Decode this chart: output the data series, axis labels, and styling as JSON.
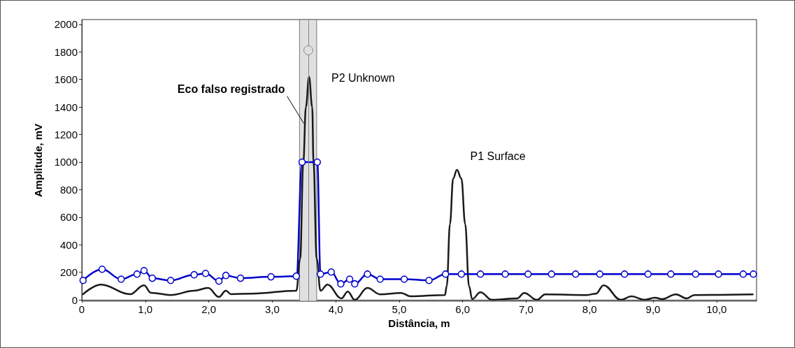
{
  "chart_data": {
    "type": "line",
    "xlabel": "Distância, m",
    "ylabel": "Amplitude, mV",
    "xlim": [
      0,
      10.63
    ],
    "ylim": [
      -10,
      2035
    ],
    "xticks": [
      {
        "value": 0,
        "label": "0"
      },
      {
        "value": 1,
        "label": "1,0"
      },
      {
        "value": 2,
        "label": "2,0"
      },
      {
        "value": 3,
        "label": "3,0"
      },
      {
        "value": 4,
        "label": "4,0"
      },
      {
        "value": 5,
        "label": "5,0"
      },
      {
        "value": 6,
        "label": "6,0"
      },
      {
        "value": 7,
        "label": "7,0"
      },
      {
        "value": 8,
        "label": "8,0"
      },
      {
        "value": 9,
        "label": "9,0"
      },
      {
        "value": 10,
        "label": "10,0"
      }
    ],
    "yticks": [
      0,
      200,
      400,
      600,
      800,
      1000,
      1200,
      1400,
      1600,
      1800,
      2000
    ],
    "grid": false,
    "line_style": "solid",
    "series": [
      {
        "color": "#1a1a1a",
        "marker": "none",
        "x": [
          0.02,
          0.3,
          0.76,
          0.98,
          1.09,
          1.4,
          1.77,
          1.99,
          2.16,
          2.27,
          2.35,
          2.68,
          3.38,
          3.44,
          3.49,
          3.53,
          3.58,
          3.63,
          3.65,
          3.7,
          3.76,
          3.87,
          4.09,
          4.19,
          4.3,
          4.5,
          4.7,
          5.03,
          5.18,
          5.72,
          5.75,
          5.8,
          5.85,
          5.91,
          5.98,
          6.04,
          6.1,
          6.15,
          6.28,
          6.46,
          6.86,
          6.97,
          7.17,
          7.3,
          7.96,
          8.1,
          8.22,
          8.49,
          8.66,
          8.87,
          9.03,
          9.14,
          9.36,
          9.53,
          9.65,
          10.57
        ],
        "values": [
          40,
          111,
          41,
          106,
          51,
          35,
          66,
          86,
          20,
          66,
          41,
          45,
          66,
          300,
          1000,
          1400,
          1620,
          1400,
          1000,
          300,
          66,
          111,
          10,
          60,
          0,
          86,
          40,
          50,
          25,
          35,
          100,
          550,
          880,
          944,
          880,
          550,
          100,
          5,
          55,
          0,
          10,
          50,
          0,
          40,
          35,
          45,
          106,
          0,
          25,
          0,
          15,
          5,
          40,
          10,
          35,
          40
        ]
      },
      {
        "color": "#0000cc",
        "marker": "circle",
        "x": [
          0.02,
          0.32,
          0.62,
          0.87,
          0.98,
          1.11,
          1.4,
          1.77,
          1.95,
          2.16,
          2.27,
          2.5,
          2.98,
          3.38,
          3.47,
          3.71,
          3.76,
          3.93,
          4.08,
          4.22,
          4.3,
          4.5,
          4.7,
          5.08,
          5.47,
          5.73,
          5.98,
          6.28,
          6.67,
          7.03,
          7.4,
          7.78,
          8.16,
          8.55,
          8.92,
          9.28,
          9.67,
          10.03,
          10.42,
          10.58
        ],
        "values": [
          141,
          222,
          150,
          187,
          212,
          157,
          141,
          182,
          192,
          136,
          177,
          157,
          167,
          172,
          1000,
          1000,
          187,
          202,
          116,
          150,
          116,
          187,
          150,
          150,
          141,
          187,
          187,
          187,
          187,
          187,
          187,
          187,
          187,
          187,
          187,
          187,
          187,
          187,
          187,
          187
        ]
      }
    ],
    "bands": [
      {
        "axis": "x",
        "from": 3.43,
        "to": 3.7,
        "color": "#e0e0e0"
      }
    ],
    "ref_lines": [
      {
        "axis": "x",
        "value": 3.57,
        "color": "#888888"
      }
    ],
    "annotations": [
      {
        "text": "Eco falso registrado",
        "x": 3.51,
        "y": 1280
      },
      {
        "text": "P2 Unknown",
        "x": 3.58,
        "y": 1620
      },
      {
        "text": "P1 Surface",
        "x": 5.91,
        "y": 944
      }
    ]
  }
}
